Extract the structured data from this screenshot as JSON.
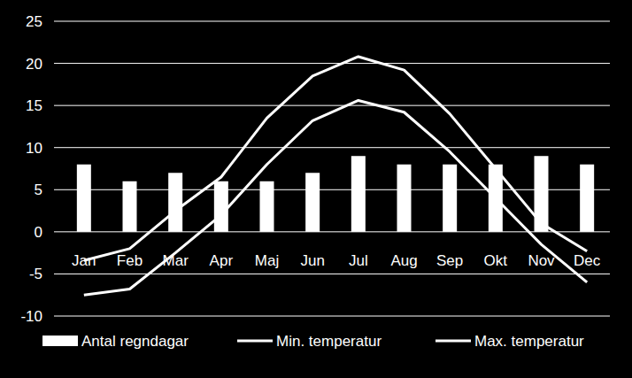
{
  "chart_data": {
    "type": "bar",
    "categories": [
      "Jan",
      "Feb",
      "Mar",
      "Apr",
      "Maj",
      "Jun",
      "Jul",
      "Aug",
      "Sep",
      "Okt",
      "Nov",
      "Dec"
    ],
    "series": [
      {
        "name": "Antal regndagar",
        "type": "bar",
        "color": "#ffffff",
        "values": [
          8,
          6,
          7,
          6,
          6,
          7,
          9,
          8,
          8,
          8,
          9,
          8
        ]
      },
      {
        "name": "Min. temperatur",
        "type": "line",
        "color": "#ffffff",
        "values": [
          -7.5,
          -6.8,
          -2.5,
          2,
          8,
          13.2,
          15.6,
          14.2,
          9.5,
          4,
          -1.5,
          -6
        ]
      },
      {
        "name": "Max. temperatur",
        "type": "line",
        "color": "#ffffff",
        "values": [
          -3.4,
          -2,
          2.5,
          6.5,
          13.5,
          18.5,
          20.8,
          19.2,
          14,
          7.5,
          1,
          -2.3
        ]
      }
    ],
    "ylim": [
      -10,
      25
    ],
    "yticks": [
      -10,
      -5,
      0,
      5,
      10,
      15,
      20,
      25
    ],
    "grid": true,
    "legend": "bottom"
  }
}
